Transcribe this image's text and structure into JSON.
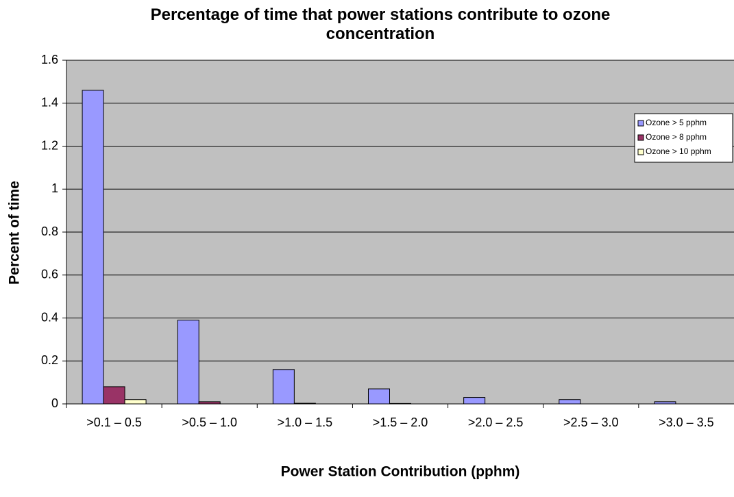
{
  "chart_data": {
    "type": "bar",
    "title": "Percentage of time that power stations contribute to ozone concentration",
    "x_label": "Power Station Contribution (pphm)",
    "y_label": "Percent of time",
    "categories": [
      ">0.1 – 0.5",
      ">0.5 – 1.0",
      ">1.0 – 1.5",
      ">1.5 – 2.0",
      ">2.0 – 2.5",
      ">2.5 – 3.0",
      ">3.0 – 3.5"
    ],
    "series": [
      {
        "name": "Ozone > 5 pphm",
        "color": "#9999ff",
        "values": [
          1.46,
          0.39,
          0.16,
          0.07,
          0.03,
          0.02,
          0.01
        ]
      },
      {
        "name": "Ozone > 8 pphm",
        "color": "#993366",
        "values": [
          0.08,
          0.01,
          0.003,
          0.002,
          0,
          0,
          0
        ]
      },
      {
        "name": "Ozone > 10 pphm",
        "color": "#ffffcc",
        "values": [
          0.02,
          0,
          0,
          0,
          0,
          0,
          0
        ]
      }
    ],
    "ylim": [
      0,
      1.6
    ],
    "yticks": [
      0,
      0.2,
      0.4,
      0.6,
      0.8,
      1,
      1.2,
      1.4,
      1.6
    ],
    "grid": true,
    "legend": "upper-right",
    "plot_background": "#c0c0c0"
  }
}
